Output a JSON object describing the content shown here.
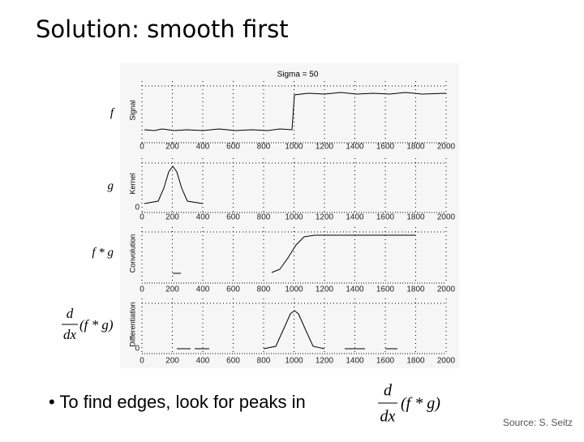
{
  "title": "Solution: smooth first",
  "figure": {
    "title": "Sigma = 50",
    "xlim": [
      0,
      2000
    ],
    "xticks": [
      0,
      200,
      400,
      600,
      800,
      1000,
      1200,
      1400,
      1600,
      1800,
      2000
    ],
    "panels": [
      {
        "label": "f",
        "ylabel": "Signal"
      },
      {
        "label": "g",
        "ylabel": "Kernel",
        "zero": "0"
      },
      {
        "label": "f * g",
        "ylabel": "Convolution"
      },
      {
        "label_num": "d",
        "label_den": "dx",
        "label_rest": "(f * g)",
        "ylabel": "Differentiation",
        "zero": "0"
      }
    ]
  },
  "bullet": {
    "text": "To find edges, look for peaks in",
    "num": "d",
    "den": "dx",
    "rest": "(f * g)"
  },
  "source": "Source: S. Seitz"
}
